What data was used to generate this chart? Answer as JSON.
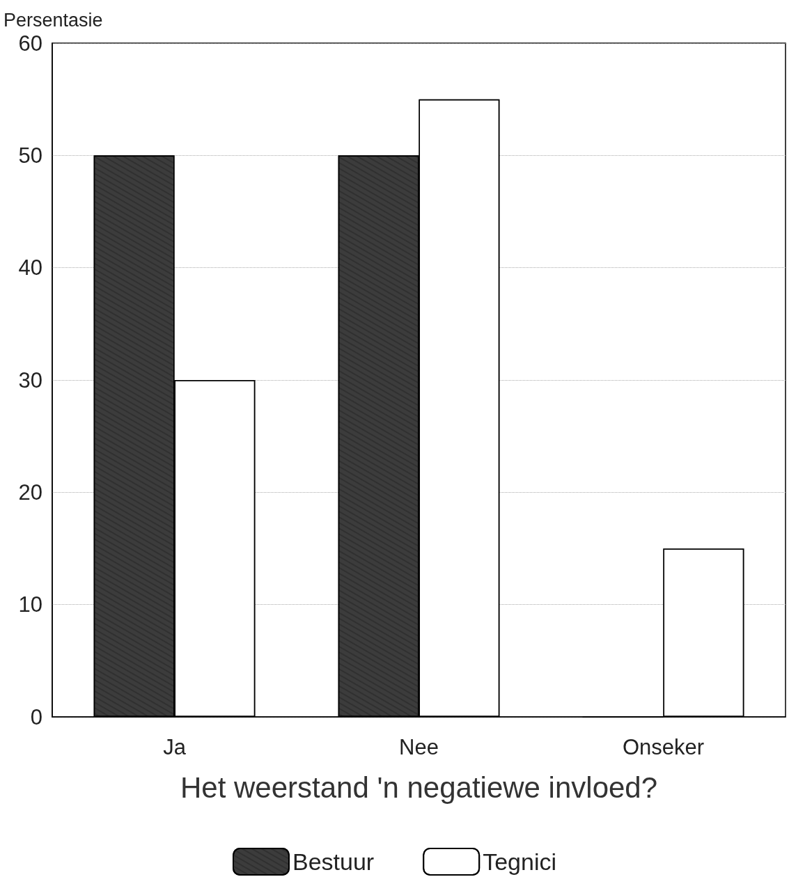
{
  "chart_data": {
    "type": "bar",
    "xlabel": "Het weerstand 'n negatiewe invloed?",
    "ylabel": "Persentasie",
    "categories": [
      "Ja",
      "Nee",
      "Onseker"
    ],
    "series": [
      {
        "name": "Bestuur",
        "color": "#3c3c3c",
        "values": [
          50,
          50,
          0
        ]
      },
      {
        "name": "Tegnici",
        "color": "#ffffff",
        "values": [
          30,
          55,
          15
        ]
      }
    ],
    "ylim": [
      0,
      60
    ],
    "yticks": [
      0,
      10,
      20,
      30,
      40,
      50,
      60
    ],
    "grid": "y",
    "legend": "bottom"
  }
}
